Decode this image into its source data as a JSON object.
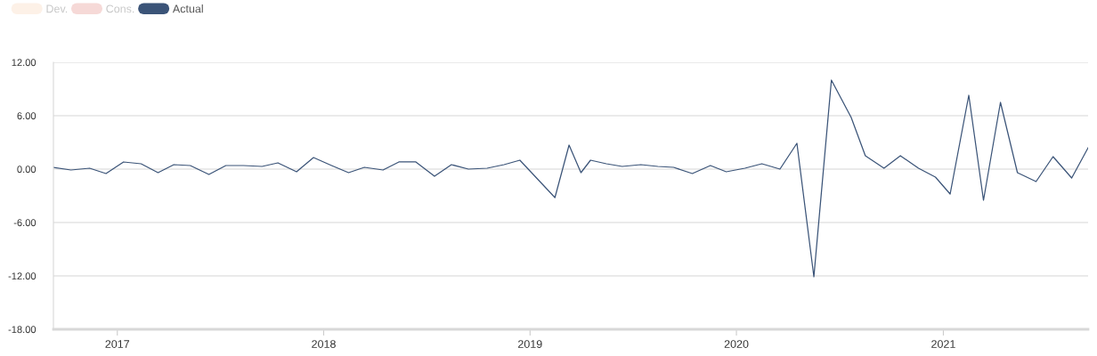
{
  "chart_data": {
    "type": "line",
    "x": [
      "2016-09-10",
      "2016-10-11",
      "2016-11-13",
      "2016-12-12",
      "2017-01-12",
      "2017-02-12",
      "2017-03-14",
      "2017-04-11",
      "2017-05-10",
      "2017-06-12",
      "2017-07-12",
      "2017-08-12",
      "2017-09-14",
      "2017-10-12",
      "2017-11-14",
      "2017-12-14",
      "2018-01-15",
      "2018-02-14",
      "2018-03-14",
      "2018-04-16",
      "2018-05-14",
      "2018-06-13",
      "2018-07-16",
      "2018-08-15",
      "2018-09-14",
      "2018-10-17",
      "2018-11-16",
      "2018-12-14",
      "2019-02-14",
      "2019-03-11",
      "2019-04-01",
      "2019-04-18",
      "2019-05-16",
      "2019-06-13",
      "2019-07-16",
      "2019-08-15",
      "2019-09-12",
      "2019-10-15",
      "2019-11-16",
      "2019-12-14",
      "2020-01-16",
      "2020-02-15",
      "2020-03-18",
      "2020-04-17",
      "2020-05-17",
      "2020-06-17",
      "2020-07-22",
      "2020-08-16",
      "2020-09-18",
      "2020-10-17",
      "2020-11-18",
      "2020-12-18",
      "2021-01-13",
      "2021-02-15",
      "2021-03-13",
      "2021-04-12",
      "2021-05-12",
      "2021-06-14",
      "2021-07-14",
      "2021-08-16",
      "2021-09-14"
    ],
    "series": [
      {
        "name": "Dev.",
        "color": "#fdf1e7",
        "values": [
          null,
          null,
          null,
          null,
          null,
          null,
          null,
          null,
          null,
          null,
          null,
          null,
          null,
          null,
          null,
          null,
          null,
          null,
          null,
          null,
          null,
          null,
          null,
          null,
          null,
          null,
          null,
          null,
          null,
          null,
          null,
          null,
          null,
          null,
          null,
          null,
          null,
          null,
          null,
          null,
          null,
          null,
          null,
          null,
          null,
          null,
          null,
          null,
          null,
          null,
          null,
          null,
          null,
          null,
          null,
          null,
          null,
          null,
          null,
          null,
          null
        ]
      },
      {
        "name": "Cons.",
        "color": "#f6d9d7",
        "values": [
          null,
          null,
          null,
          null,
          null,
          null,
          null,
          null,
          null,
          null,
          null,
          null,
          null,
          null,
          null,
          null,
          null,
          null,
          null,
          null,
          null,
          null,
          null,
          null,
          null,
          null,
          null,
          null,
          null,
          null,
          null,
          null,
          null,
          null,
          null,
          null,
          null,
          null,
          null,
          null,
          null,
          null,
          null,
          null,
          null,
          null,
          null,
          null,
          null,
          null,
          null,
          null,
          null,
          null,
          null,
          null,
          null,
          null,
          null,
          null,
          null
        ]
      },
      {
        "name": "Actual",
        "color": "#3b5478",
        "values": [
          0.2,
          -0.1,
          0.1,
          -0.5,
          0.8,
          0.6,
          -0.4,
          0.5,
          0.4,
          -0.6,
          0.4,
          0.4,
          0.3,
          0.7,
          -0.3,
          1.3,
          0.4,
          -0.4,
          0.2,
          -0.1,
          0.8,
          0.8,
          -0.8,
          0.5,
          0.0,
          0.1,
          0.5,
          1.0,
          -3.2,
          2.7,
          -0.4,
          1.0,
          0.6,
          0.3,
          0.5,
          0.3,
          0.2,
          -0.5,
          0.4,
          -0.3,
          0.1,
          0.6,
          0.0,
          2.9,
          -12.1,
          10.0,
          5.8,
          1.5,
          0.1,
          1.5,
          0.1,
          -0.9,
          -2.8,
          8.3,
          -3.5,
          7.5,
          -0.4,
          -1.4,
          1.4,
          -1.0,
          2.4
        ]
      }
    ],
    "xlim": [
      "2016-09-10",
      "2021-09-14"
    ],
    "xticks": [
      {
        "value": "2017-01-01",
        "label": "2017"
      },
      {
        "value": "2018-01-01",
        "label": "2018"
      },
      {
        "value": "2019-01-01",
        "label": "2019"
      },
      {
        "value": "2020-01-01",
        "label": "2020"
      },
      {
        "value": "2021-01-01",
        "label": "2021"
      }
    ],
    "ylim": [
      -18,
      12
    ],
    "yticks": [
      {
        "value": -18,
        "label": "-18.00"
      },
      {
        "value": -12,
        "label": "-12.00"
      },
      {
        "value": -6,
        "label": "-6.00"
      },
      {
        "value": 0,
        "label": "0.00"
      },
      {
        "value": 6,
        "label": "6.00"
      },
      {
        "value": 12,
        "label": "12.00"
      }
    ],
    "grid": "y",
    "legend": "top left",
    "marker": "none",
    "line_style": "solid"
  }
}
